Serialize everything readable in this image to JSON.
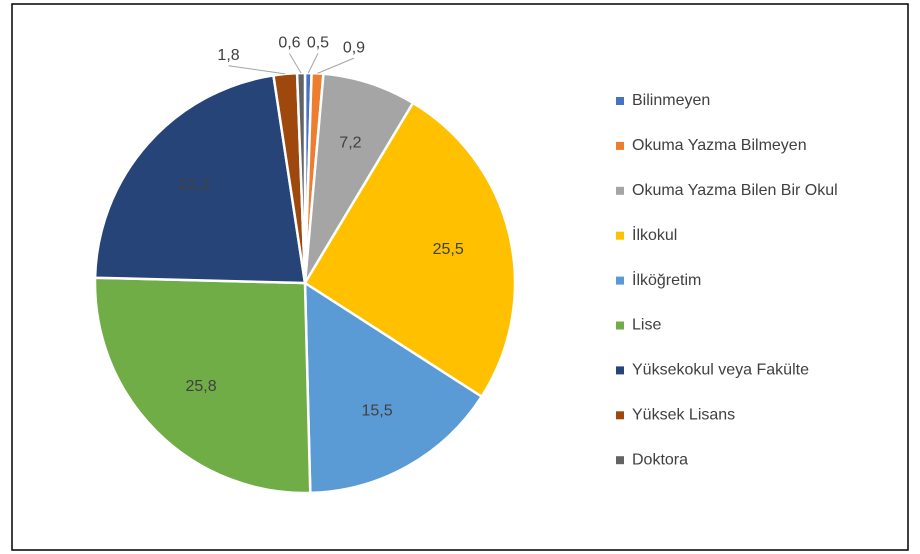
{
  "chart_data": {
    "type": "pie",
    "categories": [
      "Bilinmeyen",
      "Okuma Yazma Bilmeyen",
      "Okuma Yazma Bilen Bir Okul",
      "İlkokul",
      "İlköğretim",
      "Lise",
      "Yüksekokul veya Fakülte",
      "Yüksek Lisans",
      "Doktora"
    ],
    "values": [
      0.5,
      0.9,
      7.2,
      25.5,
      15.5,
      25.8,
      22.2,
      1.8,
      0.6
    ],
    "value_labels": [
      "0,5",
      "0,9",
      "7,2",
      "25,5",
      "15,5",
      "25,8",
      "22,2",
      "1,8",
      "0,6"
    ],
    "colors": [
      "#4472c4",
      "#ed7d31",
      "#a5a5a5",
      "#ffc000",
      "#5b9bd5",
      "#70ad47",
      "#264478",
      "#9e480e",
      "#636363"
    ],
    "legend": "right"
  }
}
